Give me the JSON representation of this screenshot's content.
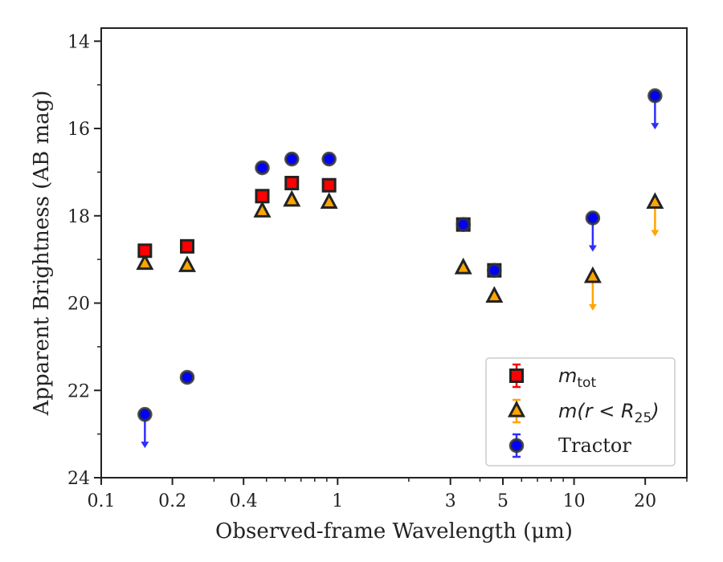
{
  "chart_data": {
    "type": "scatter",
    "title": "",
    "xlabel": "Observed-frame Wavelength (μm)",
    "ylabel": "Apparent Brightness (AB mag)",
    "xscale": "log",
    "xlim": [
      0.1,
      30
    ],
    "ylim": [
      24,
      13.7
    ],
    "y_inverted": true,
    "grid": false,
    "legend_position": "lower right",
    "x_ticks": [
      {
        "value": 0.1,
        "label": "0.1"
      },
      {
        "value": 0.2,
        "label": "0.2"
      },
      {
        "value": 0.4,
        "label": "0.4"
      },
      {
        "value": 1,
        "label": "1"
      },
      {
        "value": 3,
        "label": "3"
      },
      {
        "value": 5,
        "label": "5"
      },
      {
        "value": 10,
        "label": "10"
      },
      {
        "value": 20,
        "label": "20"
      }
    ],
    "y_ticks": [
      {
        "value": 14,
        "label": "14"
      },
      {
        "value": 16,
        "label": "16"
      },
      {
        "value": 18,
        "label": "18"
      },
      {
        "value": 20,
        "label": "20"
      },
      {
        "value": 22,
        "label": "22"
      },
      {
        "value": 24,
        "label": "24"
      }
    ],
    "series": [
      {
        "name": "m_tot",
        "legend_label": {
          "base": "m",
          "sub": "tot",
          "rest": ""
        },
        "marker": "square",
        "color": "#ff0000",
        "edge_color": "#222222",
        "points": [
          {
            "x": 0.153,
            "y": 18.8
          },
          {
            "x": 0.231,
            "y": 18.7
          },
          {
            "x": 0.48,
            "y": 17.55
          },
          {
            "x": 0.64,
            "y": 17.25
          },
          {
            "x": 0.92,
            "y": 17.3
          },
          {
            "x": 3.4,
            "y": 18.2
          },
          {
            "x": 4.6,
            "y": 19.25
          }
        ]
      },
      {
        "name": "m(r < R25)",
        "legend_label": {
          "base": "m(r < R",
          "sub": "25",
          "rest": ")"
        },
        "marker": "triangle",
        "color": "#ffa500",
        "edge_color": "#222222",
        "points": [
          {
            "x": 0.153,
            "y": 19.1
          },
          {
            "x": 0.231,
            "y": 19.15
          },
          {
            "x": 0.48,
            "y": 17.9
          },
          {
            "x": 0.64,
            "y": 17.65
          },
          {
            "x": 0.92,
            "y": 17.7
          },
          {
            "x": 3.4,
            "y": 19.2
          },
          {
            "x": 4.6,
            "y": 19.85
          },
          {
            "x": 12,
            "y": 19.4,
            "upper_limit": true
          },
          {
            "x": 22,
            "y": 17.7,
            "upper_limit": true
          }
        ]
      },
      {
        "name": "Tractor",
        "legend_label": {
          "base": "Tractor",
          "sub": "",
          "rest": ""
        },
        "marker": "circle",
        "color": "#0000ff",
        "edge_color": "#333333",
        "points": [
          {
            "x": 0.153,
            "y": 22.55,
            "upper_limit": true
          },
          {
            "x": 0.231,
            "y": 21.7
          },
          {
            "x": 0.48,
            "y": 16.9
          },
          {
            "x": 0.64,
            "y": 16.7
          },
          {
            "x": 0.92,
            "y": 16.7
          },
          {
            "x": 3.4,
            "y": 18.2
          },
          {
            "x": 4.6,
            "y": 19.25
          },
          {
            "x": 12,
            "y": 18.05,
            "upper_limit": true
          },
          {
            "x": 22,
            "y": 15.25,
            "upper_limit": true
          }
        ]
      }
    ],
    "limit_arrow_colors": {
      "Tractor": "#2e2eff",
      "m(r < R25)": "#ffa500"
    }
  }
}
